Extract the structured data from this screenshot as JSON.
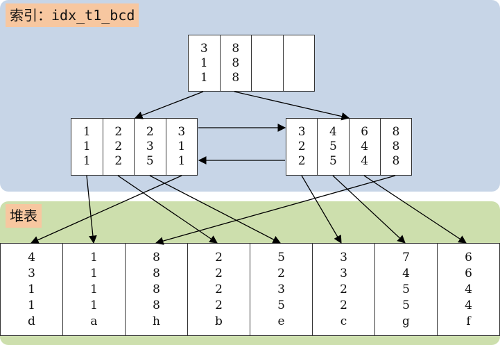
{
  "index_label": "索引：idx_t1_bcd",
  "heap_label": "堆表",
  "root_node": [
    {
      "values": [
        "3",
        "1",
        "1"
      ]
    },
    {
      "values": [
        "8",
        "8",
        "8"
      ]
    },
    {
      "values": []
    },
    {
      "values": []
    }
  ],
  "left_node": [
    {
      "values": [
        "1",
        "1",
        "1"
      ]
    },
    {
      "values": [
        "2",
        "2",
        "2"
      ]
    },
    {
      "values": [
        "2",
        "3",
        "5"
      ]
    },
    {
      "values": [
        "3",
        "1",
        "1"
      ]
    }
  ],
  "right_node": [
    {
      "values": [
        "3",
        "2",
        "2"
      ]
    },
    {
      "values": [
        "4",
        "5",
        "5"
      ]
    },
    {
      "values": [
        "6",
        "4",
        "4"
      ]
    },
    {
      "values": [
        "8",
        "8",
        "8"
      ]
    }
  ],
  "heap_rows": [
    {
      "values": [
        "4",
        "3",
        "1",
        "1",
        "d"
      ]
    },
    {
      "values": [
        "1",
        "1",
        "1",
        "1",
        "a"
      ]
    },
    {
      "values": [
        "8",
        "8",
        "8",
        "8",
        "h"
      ]
    },
    {
      "values": [
        "2",
        "2",
        "2",
        "2",
        "b"
      ]
    },
    {
      "values": [
        "5",
        "2",
        "3",
        "5",
        "e"
      ]
    },
    {
      "values": [
        "3",
        "3",
        "2",
        "2",
        "c"
      ]
    },
    {
      "values": [
        "7",
        "4",
        "5",
        "5",
        "g"
      ]
    },
    {
      "values": [
        "6",
        "6",
        "4",
        "4",
        "f"
      ]
    }
  ]
}
